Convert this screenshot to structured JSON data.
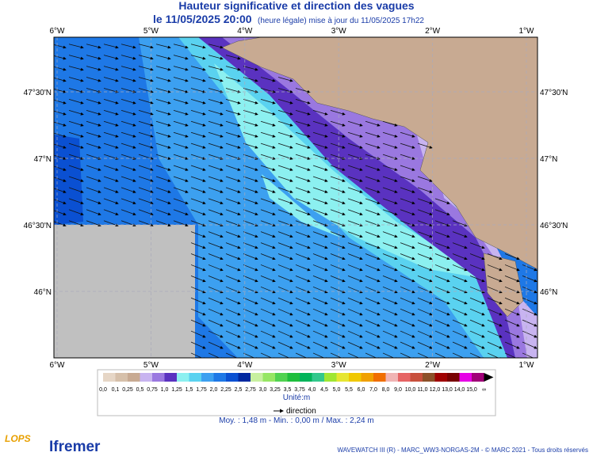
{
  "header": {
    "title": "Hauteur significative et direction des vagues",
    "date": "le 11/05/2025 20:00",
    "note": "(heure légale) mise à jour du 11/05/2025 17h22"
  },
  "map": {
    "lon_labels": [
      "6°W",
      "5°W",
      "4°W",
      "3°W",
      "2°W",
      "1°W"
    ],
    "lat_labels": [
      "47°30'N",
      "47°N",
      "46°30'N",
      "46°N"
    ]
  },
  "legend": {
    "labels": [
      "0,0",
      "0,1",
      "0,25",
      "0,5",
      "0,75",
      "1,0",
      "1,25",
      "1,5",
      "1,75",
      "2,0",
      "2,25",
      "2,5",
      "2,75",
      "3,0",
      "3,25",
      "3,5",
      "3,75",
      "4,0",
      "4,5",
      "5,0",
      "5,5",
      "6,0",
      "7,0",
      "8,0",
      "9,0",
      "10,0",
      "11,0",
      "12,0",
      "13,0",
      "14,0",
      "15,0",
      "∞"
    ],
    "colors": [
      "#e6d6c6",
      "#d6c0aa",
      "#c8aa92",
      "#c8b4f0",
      "#9a78e0",
      "#5a32c0",
      "#8cf0f0",
      "#5ad2f0",
      "#3ca0f0",
      "#1e78e6",
      "#0a50d2",
      "#0028a0",
      "#c8f0a0",
      "#96e664",
      "#50d250",
      "#1ebe3c",
      "#00b45a",
      "#32c88c",
      "#a0e632",
      "#e6e632",
      "#f0c800",
      "#f0a000",
      "#f06e00",
      "#f0b4b4",
      "#e66464",
      "#c8503c",
      "#8c5028",
      "#a00000",
      "#780000",
      "#e600e6",
      "#a00078"
    ],
    "unit": "Unité:m",
    "direction": "direction",
    "stats": "Moy. : 1,48 m   -   Min. : 0,00 m / Max. : 2,24 m"
  },
  "footer": {
    "credit": "WAVEWATCH III (R) - MARC_WW3-NORGAS-2M - © MARC 2021 - Tous droits réservés",
    "lops": "LOPS",
    "ifremer": "Ifremer"
  }
}
